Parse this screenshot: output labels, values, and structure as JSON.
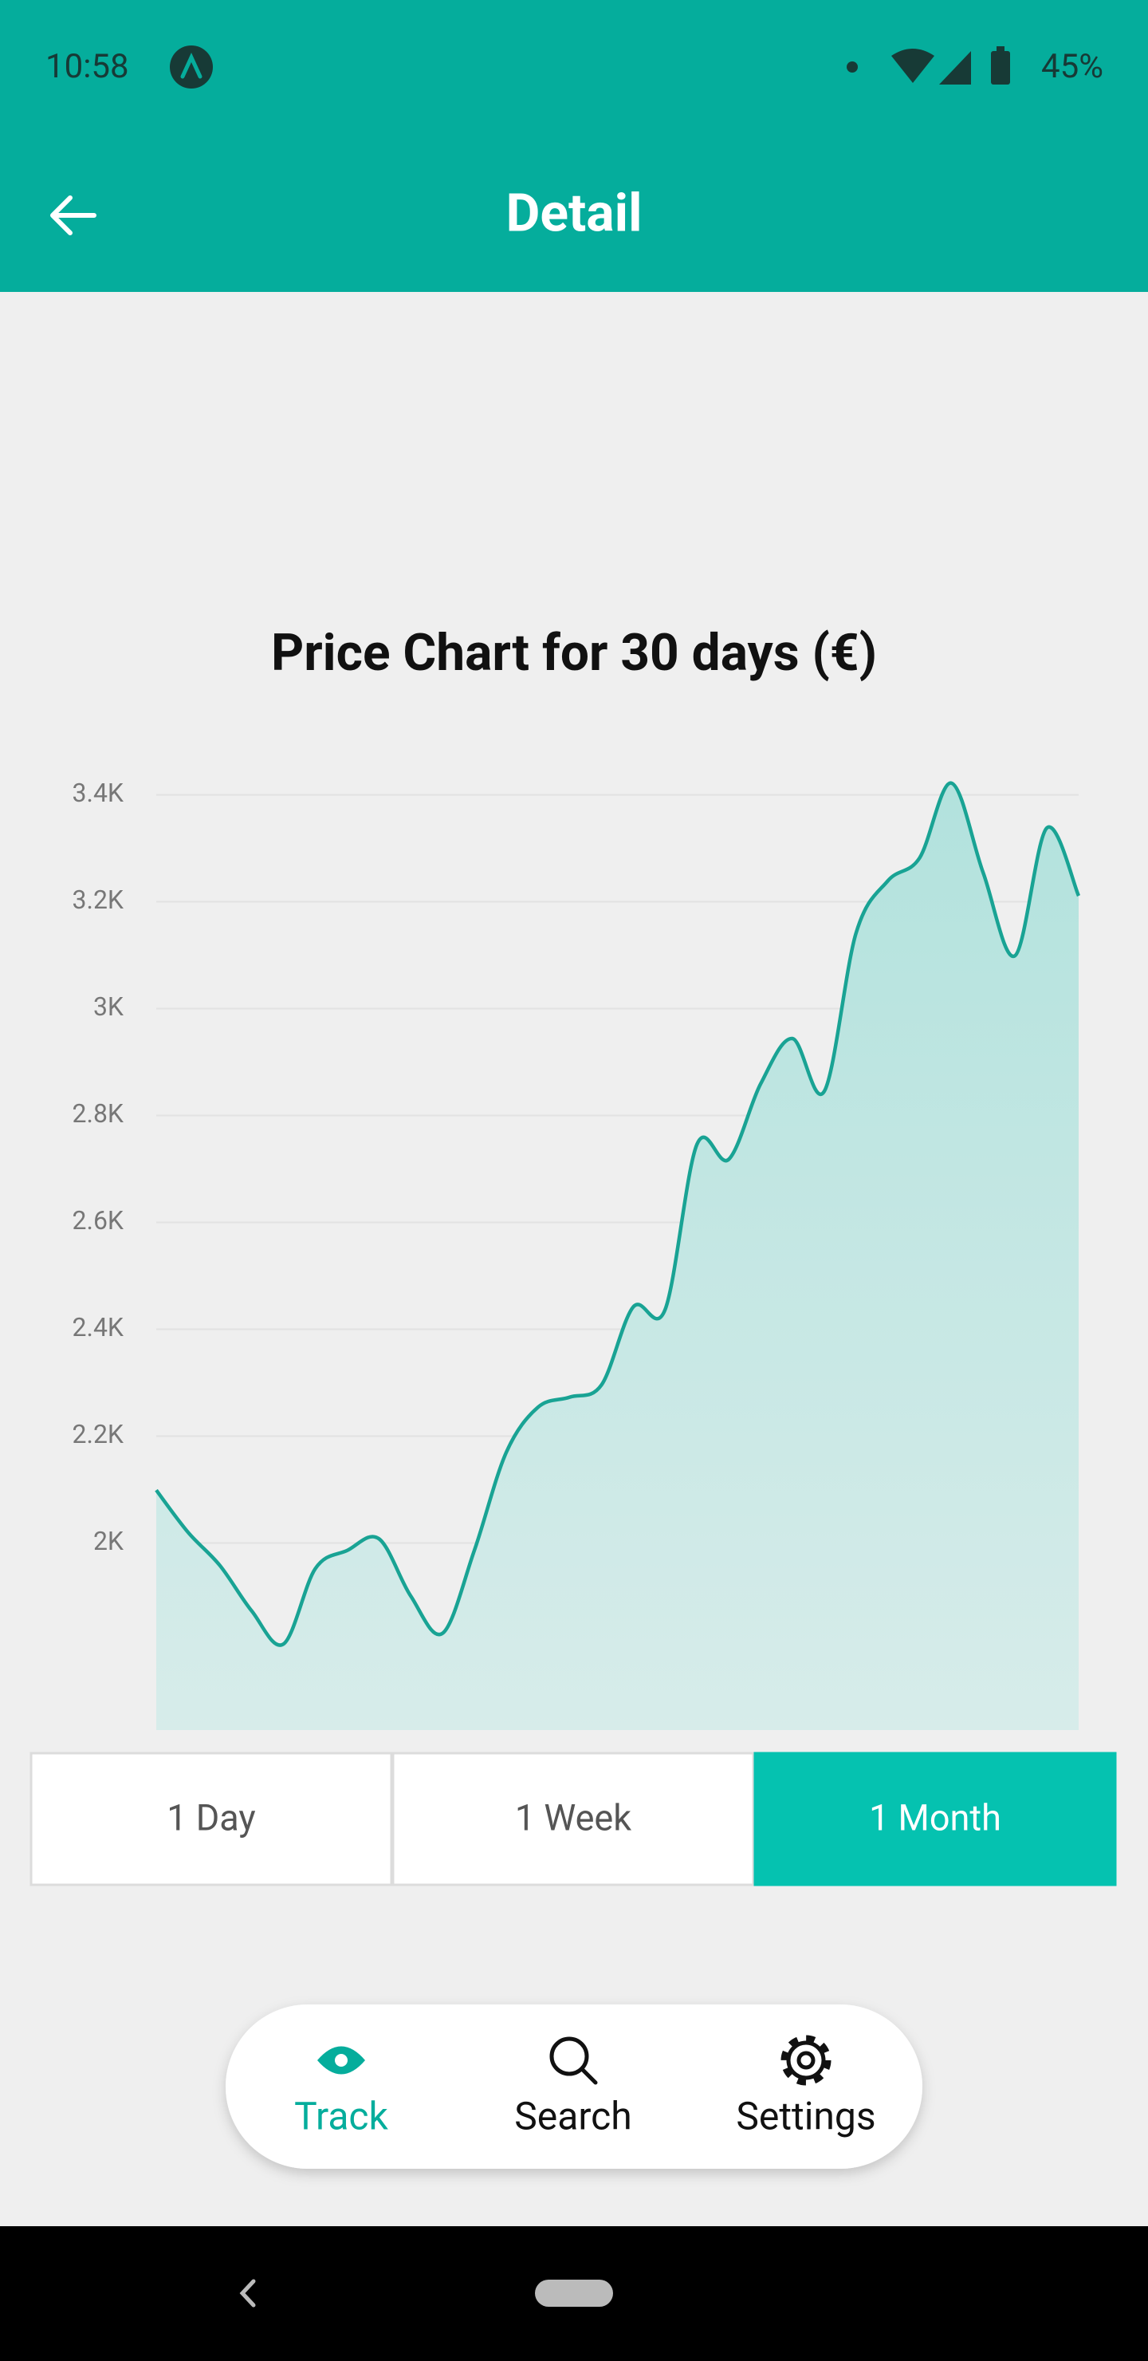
{
  "status_bar": {
    "time": "10:58",
    "battery": "45%"
  },
  "app_bar": {
    "title": "Detail"
  },
  "chart_data": {
    "type": "area",
    "title": "Price Chart for 30 days (€)",
    "color": "#19a394",
    "values": [
      2099,
      2020,
      1958,
      1873,
      1811,
      1952,
      1986,
      2008,
      1901,
      1831,
      1986,
      2169,
      2254,
      2273,
      2296,
      2442,
      2437,
      2746,
      2718,
      2859,
      2944,
      2845,
      3141,
      3239,
      3282,
      3422,
      3254,
      3099,
      3338,
      3211
    ],
    "ylim": [
      1650,
      3450
    ],
    "yticks": [
      {
        "value": 2000,
        "label": "2K"
      },
      {
        "value": 2200,
        "label": "2.2K"
      },
      {
        "value": 2400,
        "label": "2.4K"
      },
      {
        "value": 2600,
        "label": "2.6K"
      },
      {
        "value": 2800,
        "label": "2.8K"
      },
      {
        "value": 3000,
        "label": "3K"
      },
      {
        "value": 3200,
        "label": "3.2K"
      },
      {
        "value": 3400,
        "label": "3.4K"
      }
    ],
    "grid": true
  },
  "range_buttons": {
    "labels": [
      "1 Day",
      "1 Week",
      "1 Month"
    ],
    "selected_index": 2
  },
  "bottom_nav": {
    "labels": [
      "Track",
      "Search",
      "Settings"
    ],
    "active_index": 0
  }
}
